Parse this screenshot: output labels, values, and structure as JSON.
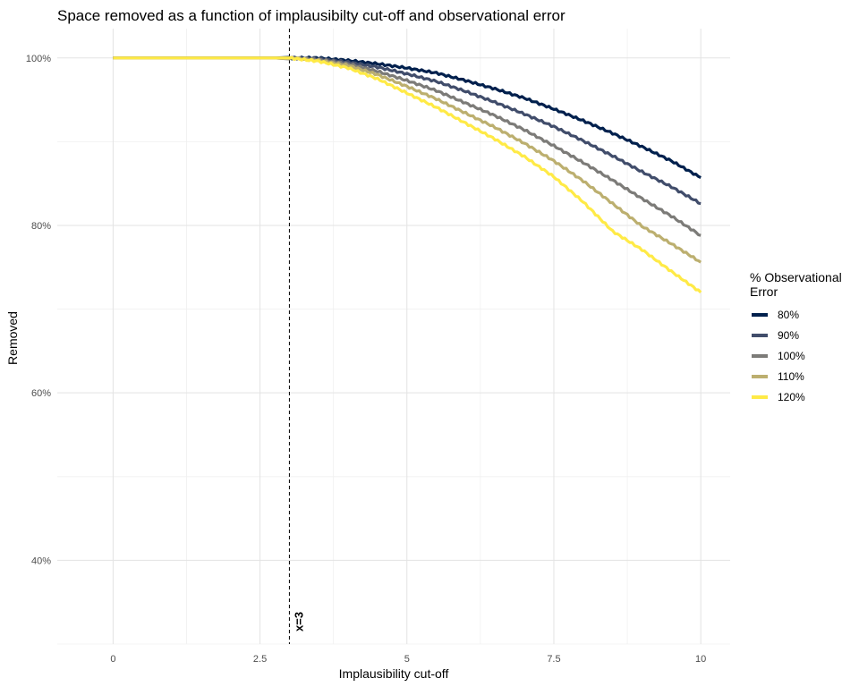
{
  "chart_data": {
    "type": "line",
    "title": "Space removed as a function of implausibilty cut-off and observational error",
    "xlabel": "Implausibility cut-off",
    "ylabel": "Removed",
    "xlim": [
      -0.95,
      10.5
    ],
    "ylim": [
      0.3,
      1.035
    ],
    "x_ticks": [
      0,
      2.5,
      5,
      7.5,
      10
    ],
    "x_tick_labels": [
      "0",
      "2.5",
      "5",
      "7.5",
      "10"
    ],
    "y_ticks": [
      0.4,
      0.6,
      0.8,
      1.0
    ],
    "y_tick_labels": [
      "40%",
      "60%",
      "80%",
      "100%"
    ],
    "y_minor_ticks": [
      0.3,
      0.5,
      0.7,
      0.9
    ],
    "x_minor_ticks": [
      1.25,
      3.75,
      6.25,
      8.75
    ],
    "grid": true,
    "legend": {
      "title_line1": "% Observational",
      "title_line2": "Error",
      "position": "right"
    },
    "vline": {
      "x": 3,
      "label": "x=3",
      "style": "dashed"
    },
    "series": [
      {
        "name": "80%",
        "color": "#00204d",
        "x": [
          0,
          3,
          3.5,
          4,
          4.5,
          5,
          5.5,
          6,
          6.5,
          7,
          7.5,
          8,
          8.5,
          9,
          9.5,
          10
        ],
        "values": [
          1.0,
          1.0,
          1.0,
          0.997,
          0.993,
          0.988,
          0.982,
          0.973,
          0.963,
          0.952,
          0.939,
          0.925,
          0.91,
          0.894,
          0.877,
          0.857
        ]
      },
      {
        "name": "90%",
        "color": "#414d6b",
        "x": [
          0,
          3,
          3.5,
          4,
          4.5,
          5,
          5.5,
          6,
          6.5,
          7,
          7.5,
          8,
          8.5,
          9,
          9.5,
          10
        ],
        "values": [
          1.0,
          1.0,
          0.999,
          0.995,
          0.989,
          0.981,
          0.972,
          0.96,
          0.947,
          0.933,
          0.918,
          0.901,
          0.883,
          0.864,
          0.846,
          0.826
        ]
      },
      {
        "name": "100%",
        "color": "#7c7b78",
        "x": [
          0,
          3,
          3.5,
          4,
          4.5,
          5,
          5.5,
          6,
          6.5,
          7,
          7.5,
          8,
          8.5,
          9,
          9.5,
          10
        ],
        "values": [
          1.0,
          1.0,
          0.998,
          0.993,
          0.984,
          0.973,
          0.961,
          0.946,
          0.931,
          0.914,
          0.895,
          0.875,
          0.854,
          0.832,
          0.811,
          0.788
        ]
      },
      {
        "name": "110%",
        "color": "#bcaf6f",
        "x": [
          0,
          3,
          3.5,
          4,
          4.5,
          5,
          5.5,
          6,
          6.5,
          7,
          7.5,
          8,
          8.5,
          9,
          9.5,
          10
        ],
        "values": [
          1.0,
          1.0,
          0.997,
          0.991,
          0.98,
          0.966,
          0.951,
          0.934,
          0.917,
          0.898,
          0.877,
          0.853,
          0.826,
          0.799,
          0.778,
          0.756
        ]
      },
      {
        "name": "120%",
        "color": "#ffea46",
        "x": [
          0,
          3,
          3.5,
          4,
          4.5,
          5,
          5.5,
          6,
          6.5,
          7,
          7.5,
          8,
          8.5,
          9,
          9.5,
          10
        ],
        "values": [
          1.0,
          1.0,
          0.996,
          0.988,
          0.975,
          0.958,
          0.941,
          0.922,
          0.903,
          0.882,
          0.858,
          0.828,
          0.793,
          0.771,
          0.745,
          0.72
        ]
      }
    ]
  }
}
